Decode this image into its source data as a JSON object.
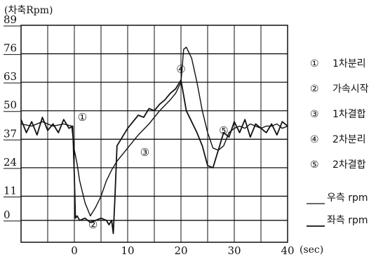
{
  "chart_data": {
    "type": "line",
    "ylabel": "(차축Rpm)",
    "xlabel": "(sec)",
    "xlim": [
      -10,
      40
    ],
    "ylim": [
      -10,
      89
    ],
    "x_ticks": [
      0,
      10,
      20,
      30,
      40
    ],
    "y_ticks": [
      0,
      11,
      24,
      37,
      50,
      63,
      76,
      89
    ],
    "grid": true,
    "legend_position": "right",
    "markers": [
      {
        "symbol": "①",
        "label": "1차분리",
        "x": 1.5,
        "y": 47
      },
      {
        "symbol": "②",
        "label": "가속시작",
        "x": 3.5,
        "y": -2
      },
      {
        "symbol": "③",
        "label": "1차결합",
        "x": 13.2,
        "y": 31
      },
      {
        "symbol": "④",
        "label": "2차분리",
        "x": 20,
        "y": 69
      },
      {
        "symbol": "⑤",
        "label": "2차결합",
        "x": 28,
        "y": 41
      }
    ],
    "series": [
      {
        "name": "우측 rpm",
        "x": [
          -10,
          -8,
          -6,
          -4,
          -2,
          -0.5,
          0,
          0.5,
          1,
          2,
          3,
          4,
          5,
          6,
          7,
          8,
          9,
          10,
          12,
          14,
          16,
          18,
          19,
          20,
          20.5,
          21,
          22,
          23,
          24,
          25,
          26,
          27,
          28,
          29,
          30,
          31,
          32,
          33,
          34,
          35,
          36,
          37,
          38,
          39,
          40
        ],
        "y": [
          44,
          43,
          45,
          43,
          44,
          43,
          32,
          26,
          18,
          8,
          2,
          6,
          11,
          18,
          23,
          27,
          30,
          33,
          39,
          44,
          50,
          55,
          58,
          63,
          78,
          79,
          74,
          63,
          50,
          40,
          33,
          32,
          34,
          40,
          42,
          43,
          42,
          44,
          43,
          42,
          43,
          43,
          44,
          42,
          43
        ]
      },
      {
        "name": "좌측 rpm",
        "x": [
          -10,
          -9,
          -8,
          -7,
          -6,
          -5,
          -4,
          -3,
          -2,
          -1,
          -0.3,
          0,
          0.2,
          0.5,
          1,
          2,
          3,
          4,
          5,
          6,
          6.5,
          7,
          7.3,
          7.6,
          8,
          9,
          10,
          11,
          12,
          13,
          14,
          15,
          16,
          17,
          18,
          19,
          20,
          20.5,
          21,
          22,
          23,
          24,
          25,
          26,
          27,
          28,
          29,
          30,
          31,
          32,
          33,
          34,
          35,
          36,
          37,
          38,
          39,
          40
        ],
        "y": [
          46,
          40,
          45,
          39,
          47,
          41,
          44,
          40,
          46,
          42,
          43,
          20,
          1,
          2,
          0,
          1,
          -1,
          0,
          1,
          0,
          -2,
          0,
          -6,
          10,
          34,
          38,
          42,
          45,
          48,
          47,
          51,
          50,
          53,
          55,
          58,
          60,
          64,
          57,
          50,
          45,
          40,
          34,
          25,
          24,
          32,
          40,
          38,
          45,
          40,
          46,
          38,
          44,
          42,
          40,
          44,
          39,
          45,
          43
        ]
      }
    ]
  }
}
